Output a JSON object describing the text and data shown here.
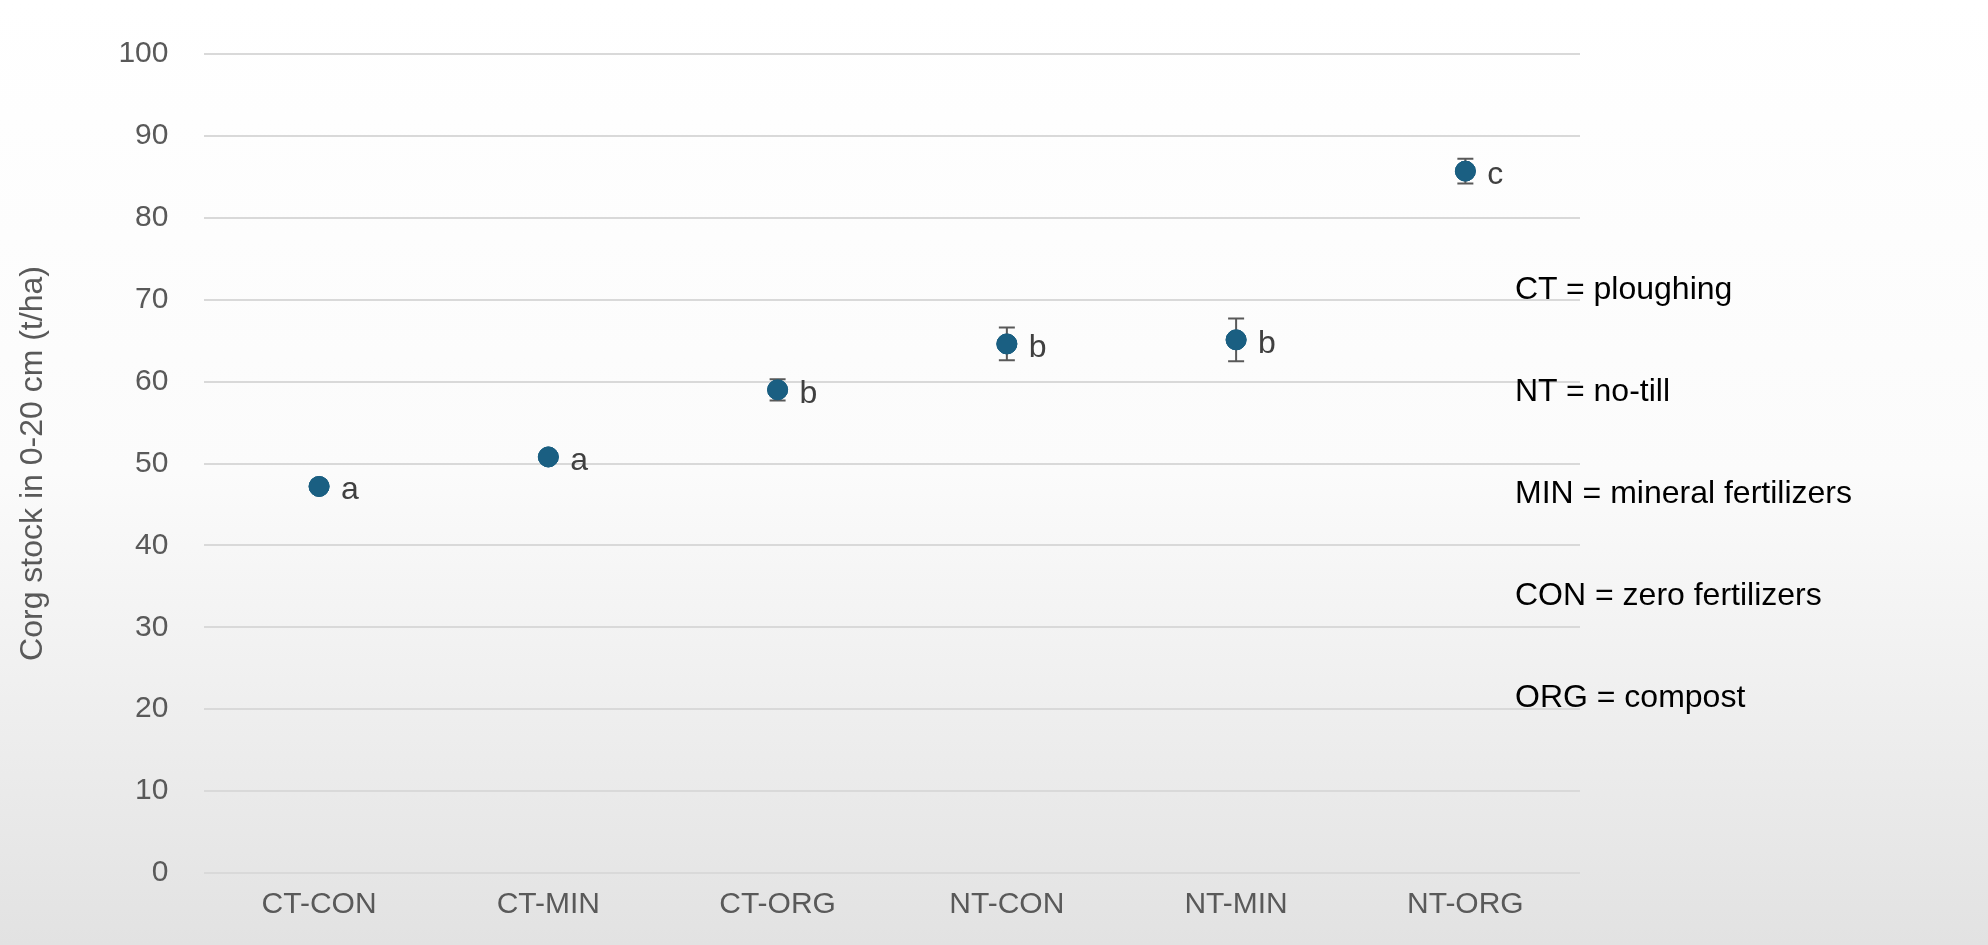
{
  "chart_data": {
    "type": "scatter",
    "ylabel": "Corg stock in 0-20 cm (t/ha)",
    "categories": [
      "CT-CON",
      "CT-MIN",
      "CT-ORG",
      "NT-CON",
      "NT-MIN",
      "NT-ORG"
    ],
    "series": [
      {
        "color": "#1a5f82",
        "values": [
          47.2,
          50.8,
          59.0,
          64.6,
          65.1,
          85.7
        ],
        "errors": [
          null,
          null,
          1.3,
          2.0,
          2.6,
          1.5
        ]
      }
    ],
    "ylim": [
      0,
      100
    ],
    "yticks": [
      0,
      10,
      20,
      30,
      40,
      50,
      60,
      70,
      80,
      90,
      100
    ],
    "grid": "y",
    "legend": false,
    "marker": "circle",
    "annotations": [
      {
        "text": "a",
        "x": "CT-CON",
        "y": 47.2
      },
      {
        "text": "a",
        "x": "CT-MIN",
        "y": 50.8
      },
      {
        "text": "b",
        "x": "CT-ORG",
        "y": 59.0
      },
      {
        "text": "b",
        "x": "NT-CON",
        "y": 64.6
      },
      {
        "text": "b",
        "x": "NT-MIN",
        "y": 65.1
      },
      {
        "text": "c",
        "x": "NT-ORG",
        "y": 85.7
      },
      "CT = ploughing",
      "NT = no-till",
      "MIN = mineral fertilizers",
      "CON = zero fertilizers",
      "ORG = compost"
    ]
  }
}
